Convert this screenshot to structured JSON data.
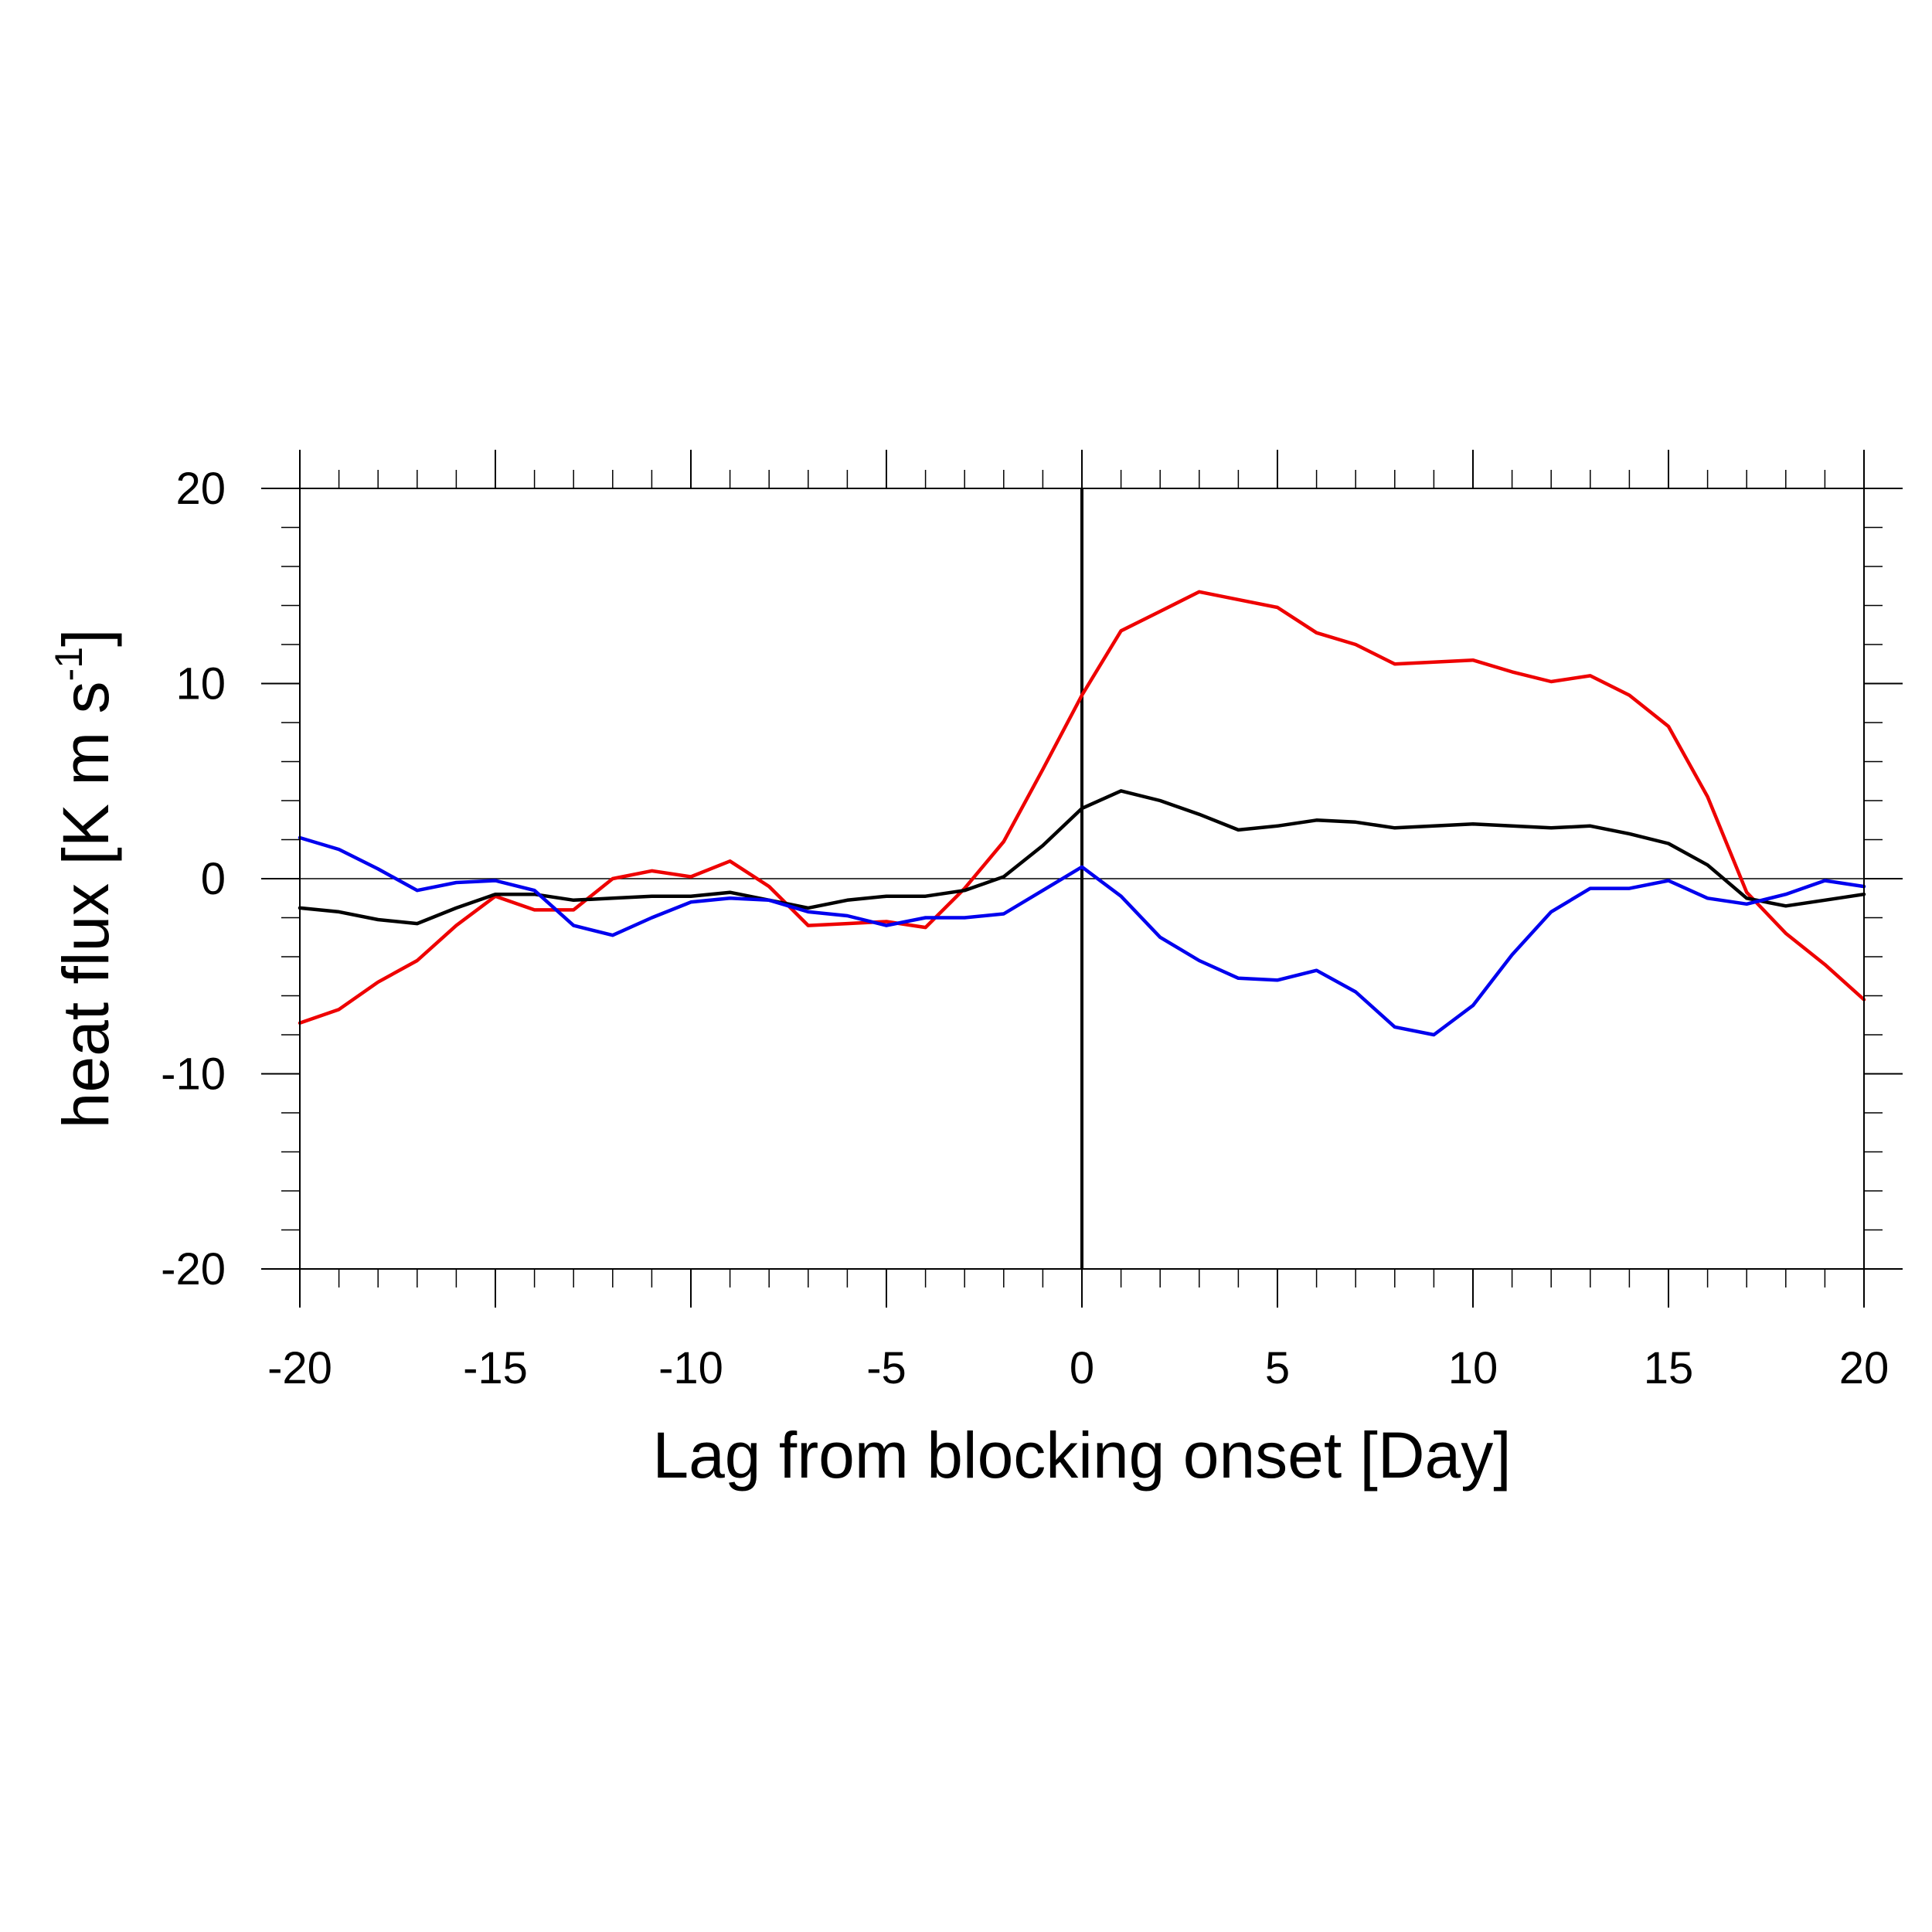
{
  "chart_data": {
    "type": "line",
    "xlabel": "Lag from blocking onset [Day]",
    "ylabel": {
      "main": "heat flux [K m s",
      "superscript": "-1",
      "close": "]"
    },
    "xlim": [
      -20,
      20
    ],
    "ylim": [
      -20,
      20
    ],
    "x_major_ticks": [
      -20,
      -15,
      -10,
      -5,
      0,
      5,
      10,
      15,
      20
    ],
    "x_tick_labels": [
      "-20",
      "-15",
      "-10",
      "-5",
      "0",
      "5",
      "10",
      "15",
      "20"
    ],
    "y_major_ticks": [
      -20,
      -10,
      0,
      10,
      20
    ],
    "y_tick_labels": [
      "-20",
      "-10",
      "0",
      "10",
      "20"
    ],
    "x_minor_step": 1,
    "y_minor_step": 2,
    "grid": false,
    "zero_line": true,
    "onset_line_x": 0,
    "x": [
      -20,
      -19,
      -18,
      -17,
      -16,
      -15,
      -14,
      -13,
      -12,
      -11,
      -10,
      -9,
      -8,
      -7,
      -6,
      -5,
      -4,
      -3,
      -2,
      -1,
      0,
      1,
      2,
      3,
      4,
      5,
      6,
      7,
      8,
      9,
      10,
      11,
      12,
      13,
      14,
      15,
      16,
      17,
      18,
      19,
      20
    ],
    "series": [
      {
        "color": "#ee0000",
        "values": [
          -7.4,
          -6.7,
          -5.3,
          -4.2,
          -2.4,
          -0.9,
          -1.6,
          -1.6,
          0.0,
          0.4,
          0.1,
          0.9,
          -0.4,
          -2.4,
          -2.3,
          -2.2,
          -2.5,
          -0.5,
          1.9,
          5.6,
          9.4,
          12.7,
          13.7,
          14.7,
          14.3,
          13.9,
          12.6,
          12.0,
          11.0,
          11.1,
          11.2,
          10.6,
          10.1,
          10.4,
          9.4,
          7.8,
          4.2,
          -0.7,
          -2.8,
          -4.4,
          -6.2
        ]
      },
      {
        "color": "#000000",
        "values": [
          -1.5,
          -1.7,
          -2.1,
          -2.3,
          -1.5,
          -0.8,
          -0.8,
          -1.1,
          -1.0,
          -0.9,
          -0.9,
          -0.7,
          -1.1,
          -1.5,
          -1.1,
          -0.9,
          -0.9,
          -0.6,
          0.1,
          1.7,
          3.6,
          4.5,
          4.0,
          3.3,
          2.5,
          2.7,
          3.0,
          2.9,
          2.6,
          2.7,
          2.8,
          2.7,
          2.6,
          2.7,
          2.3,
          1.8,
          0.7,
          -1.0,
          -1.4,
          -1.1,
          -0.8
        ]
      },
      {
        "color": "#0000ee",
        "values": [
          2.1,
          1.5,
          0.5,
          -0.6,
          -0.2,
          -0.1,
          -0.6,
          -2.4,
          -2.9,
          -2.0,
          -1.2,
          -1.0,
          -1.1,
          -1.7,
          -1.9,
          -2.4,
          -2.0,
          -2.0,
          -1.8,
          -0.6,
          0.6,
          -0.9,
          -3.0,
          -4.2,
          -5.1,
          -5.2,
          -4.7,
          -5.8,
          -7.6,
          -8.0,
          -6.5,
          -3.9,
          -1.7,
          -0.5,
          -0.5,
          -0.1,
          -1.0,
          -1.3,
          -0.8,
          -0.1,
          -0.4
        ]
      }
    ]
  }
}
